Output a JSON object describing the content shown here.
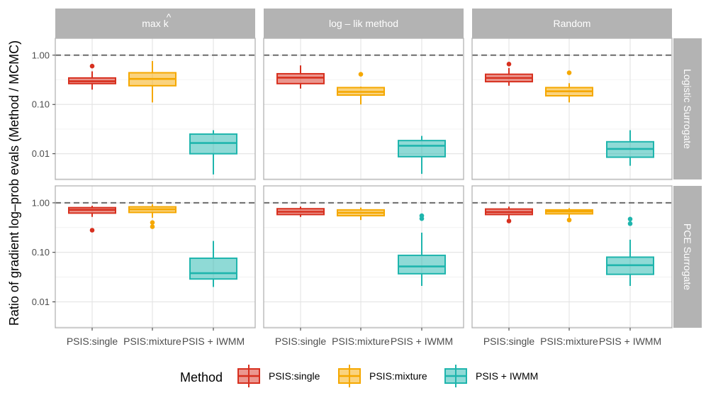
{
  "chart_data": {
    "type": "boxplot",
    "y_label": "Ratio of gradient log–prob evals (Method / MCMC)",
    "y_scale": "log10",
    "y_range": [
      0.003,
      2.2
    ],
    "y_ticks": [
      {
        "value": 1.0,
        "label": "1.00"
      },
      {
        "value": 0.1,
        "label": "0.10"
      },
      {
        "value": 0.01,
        "label": "0.01"
      }
    ],
    "reference_line": 1.0,
    "categories": [
      "PSIS:single",
      "PSIS:mixture",
      "PSIS + IWMM"
    ],
    "columns": [
      {
        "id": "maxk",
        "label_main": "max",
        "label_sup": "^",
        "label_var": "k"
      },
      {
        "id": "loglik",
        "label": "log – lik method"
      },
      {
        "id": "random",
        "label": "Random"
      }
    ],
    "rows": [
      {
        "id": "logistic",
        "label": "Logistic Surrogate"
      },
      {
        "id": "pce",
        "label": "PCE Surrogate"
      }
    ],
    "legend": {
      "title": "Method",
      "items": [
        {
          "label": "PSIS:single",
          "color": "#D7301F"
        },
        {
          "label": "PSIS:mixture",
          "color": "#F5A800"
        },
        {
          "label": "PSIS + IWMM",
          "color": "#1FB5AD"
        }
      ]
    },
    "panels": [
      {
        "row": 0,
        "col": 0,
        "boxes": [
          {
            "min": 0.2,
            "q1": 0.265,
            "median": 0.295,
            "q3": 0.345,
            "max": 0.47,
            "outliers": [
              0.6
            ]
          },
          {
            "min": 0.11,
            "q1": 0.24,
            "median": 0.33,
            "q3": 0.44,
            "max": 0.76,
            "outliers": []
          },
          {
            "min": 0.0038,
            "q1": 0.01,
            "median": 0.0165,
            "q3": 0.025,
            "max": 0.03,
            "outliers": []
          }
        ]
      },
      {
        "row": 0,
        "col": 1,
        "boxes": [
          {
            "min": 0.21,
            "q1": 0.265,
            "median": 0.35,
            "q3": 0.42,
            "max": 0.62,
            "outliers": []
          },
          {
            "min": 0.1,
            "q1": 0.155,
            "median": 0.18,
            "q3": 0.22,
            "max": 0.23,
            "outliers": [
              0.41
            ]
          },
          {
            "min": 0.0039,
            "q1": 0.0087,
            "median": 0.0145,
            "q3": 0.0185,
            "max": 0.023,
            "outliers": []
          }
        ]
      },
      {
        "row": 0,
        "col": 2,
        "boxes": [
          {
            "min": 0.24,
            "q1": 0.29,
            "median": 0.345,
            "q3": 0.41,
            "max": 0.55,
            "outliers": [
              0.66
            ]
          },
          {
            "min": 0.11,
            "q1": 0.15,
            "median": 0.185,
            "q3": 0.22,
            "max": 0.27,
            "outliers": [
              0.44
            ]
          },
          {
            "min": 0.0057,
            "q1": 0.0085,
            "median": 0.0125,
            "q3": 0.0175,
            "max": 0.03,
            "outliers": []
          }
        ]
      },
      {
        "row": 1,
        "col": 0,
        "boxes": [
          {
            "min": 0.52,
            "q1": 0.62,
            "median": 0.72,
            "q3": 0.8,
            "max": 0.87,
            "outliers": [
              0.28
            ]
          },
          {
            "min": 0.5,
            "q1": 0.64,
            "median": 0.74,
            "q3": 0.83,
            "max": 0.94,
            "outliers": [
              0.4,
              0.33
            ]
          },
          {
            "min": 0.02,
            "q1": 0.029,
            "median": 0.038,
            "q3": 0.076,
            "max": 0.17,
            "outliers": []
          }
        ]
      },
      {
        "row": 1,
        "col": 1,
        "boxes": [
          {
            "min": 0.52,
            "q1": 0.58,
            "median": 0.66,
            "q3": 0.76,
            "max": 0.84,
            "outliers": []
          },
          {
            "min": 0.45,
            "q1": 0.55,
            "median": 0.63,
            "q3": 0.72,
            "max": 0.8,
            "outliers": []
          },
          {
            "min": 0.021,
            "q1": 0.037,
            "median": 0.052,
            "q3": 0.087,
            "max": 0.25,
            "outliers": [
              0.55,
              0.48
            ]
          }
        ]
      },
      {
        "row": 1,
        "col": 2,
        "boxes": [
          {
            "min": 0.48,
            "q1": 0.58,
            "median": 0.65,
            "q3": 0.75,
            "max": 0.84,
            "outliers": [
              0.43
            ]
          },
          {
            "min": 0.5,
            "q1": 0.6,
            "median": 0.67,
            "q3": 0.72,
            "max": 0.78,
            "outliers": [
              0.45
            ]
          },
          {
            "min": 0.021,
            "q1": 0.036,
            "median": 0.055,
            "q3": 0.08,
            "max": 0.18,
            "outliers": [
              0.47,
              0.38
            ]
          }
        ]
      }
    ]
  }
}
